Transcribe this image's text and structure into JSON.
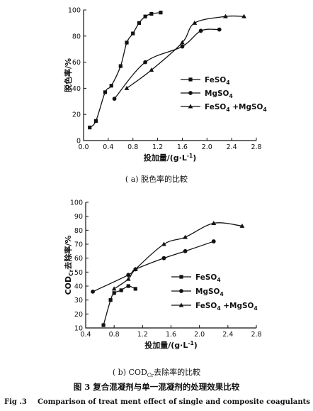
{
  "figure": {
    "title_cn": "图 3   复合混凝剂与单一混凝剂的处理效果比较",
    "title_en_prefix": "Fig .3",
    "title_en": "Comparison of treat ment effect of single and composite coagulants"
  },
  "chart_data": [
    {
      "id": "a",
      "type": "line",
      "caption": "( a)  脱色率的比較",
      "xlabel_main": "投加量/(g·L",
      "xlabel_sup": "-1",
      "xlabel_end": ")",
      "ylabel": "脱色率/%",
      "xlim": [
        0,
        2.8
      ],
      "ylim": [
        0,
        100
      ],
      "xticks": [
        "0.0",
        "0.4",
        "0.8",
        "1.2",
        "1.6",
        "2.0",
        "2.4",
        "2.8"
      ],
      "xtick_values": [
        0.0,
        0.4,
        0.8,
        1.2,
        1.6,
        2.0,
        2.4,
        2.8
      ],
      "yticks": [
        "0",
        "20",
        "40",
        "60",
        "80",
        "100"
      ],
      "ytick_values": [
        0,
        20,
        40,
        60,
        80,
        100
      ],
      "legend_position": "right",
      "series": [
        {
          "name": "FeSO",
          "sub": "4",
          "marker": "square",
          "x": [
            0.1,
            0.2,
            0.35,
            0.45,
            0.6,
            0.7,
            0.8,
            0.9,
            1.0,
            1.1,
            1.25
          ],
          "y": [
            10,
            15,
            37,
            42,
            57,
            75,
            82,
            90,
            95,
            97,
            98
          ]
        },
        {
          "name": "MgSO",
          "sub": "4",
          "marker": "circle",
          "x": [
            0.5,
            1.0,
            1.6,
            1.9,
            2.2
          ],
          "y": [
            32,
            60,
            72,
            84,
            85
          ]
        },
        {
          "name": "FeSO",
          "sub": "4",
          "name2": " +MgSO",
          "sub2": "4",
          "marker": "triangle",
          "x": [
            0.7,
            1.1,
            1.6,
            1.8,
            2.3,
            2.6
          ],
          "y": [
            40,
            54,
            75,
            90,
            95,
            95
          ]
        }
      ]
    },
    {
      "id": "b",
      "type": "line",
      "caption_prefix": "( b)  COD",
      "caption_sub": "Cr",
      "caption_suffix": "去除率的比較",
      "xlabel_main": "投加量/(g·L",
      "xlabel_sup": "-1",
      "xlabel_end": ")",
      "ylabel_prefix": "COD",
      "ylabel_sub": "Cr",
      "ylabel_suffix": "去除率/%",
      "xlim": [
        0.4,
        2.8
      ],
      "ylim": [
        10,
        100
      ],
      "xticks": [
        "0.4",
        "0.8",
        "1.2",
        "1.6",
        "2.0",
        "2.4",
        "2.8"
      ],
      "xtick_values": [
        0.4,
        0.8,
        1.2,
        1.6,
        2.0,
        2.4,
        2.8
      ],
      "yticks": [
        "10",
        "20",
        "30",
        "40",
        "50",
        "60",
        "70",
        "80",
        "90",
        "100"
      ],
      "ytick_values": [
        10,
        20,
        30,
        40,
        50,
        60,
        70,
        80,
        90,
        100
      ],
      "legend_position": "bottom-right",
      "series": [
        {
          "name": "FeSO",
          "sub": "4",
          "marker": "square",
          "x": [
            0.65,
            0.75,
            0.8,
            0.9,
            1.0,
            1.1
          ],
          "y": [
            12,
            30,
            35,
            37,
            40,
            38
          ]
        },
        {
          "name": "MgSO",
          "sub": "4",
          "marker": "circle",
          "x": [
            0.5,
            1.0,
            1.1,
            1.5,
            1.8,
            2.2
          ],
          "y": [
            36,
            48,
            52,
            60,
            65,
            72
          ]
        },
        {
          "name": "FeSO",
          "sub": "4",
          "name2": " +MgSO",
          "sub2": "4",
          "marker": "triangle",
          "x": [
            0.8,
            1.0,
            1.1,
            1.5,
            1.8,
            2.2,
            2.6
          ],
          "y": [
            38,
            45,
            52,
            70,
            75,
            85,
            83
          ]
        }
      ]
    }
  ]
}
